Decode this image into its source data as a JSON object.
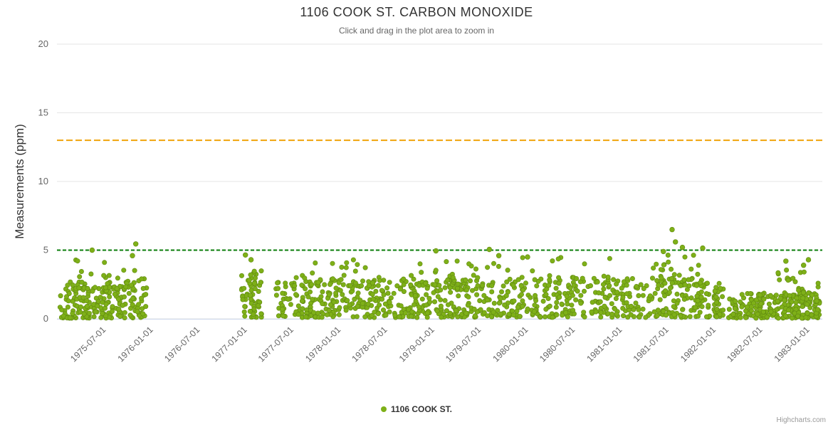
{
  "title": "1106 COOK ST. CARBON MONOXIDE",
  "subtitle": "Click and drag in the plot area to zoom in",
  "credits": "Highcharts.com",
  "legend": {
    "series_label": "1106 COOK ST."
  },
  "colors": {
    "point": "#7eb018",
    "point_stroke": "#618a10",
    "orange_plotline": "#f0a30a",
    "green_plotline": "#0a7d0a",
    "grid": "#e6e6e6",
    "axis_line": "#ccd6eb",
    "axis_text": "#666666",
    "title_text": "#333333"
  },
  "chart_data": {
    "type": "scatter",
    "title": "1106 COOK ST. CARBON MONOXIDE",
    "subtitle": "Click and drag in the plot area to zoom in",
    "series_name": "1106 COOK ST.",
    "xlabel": "",
    "ylabel": "Measurements (ppm)",
    "ylim": [
      0,
      20
    ],
    "yticks": [
      0,
      5,
      10,
      15,
      20
    ],
    "x_range": [
      "1975-01-01",
      "1983-03-01"
    ],
    "xtick_labels": [
      "1975-07-01",
      "1976-01-01",
      "1976-07-01",
      "1977-01-01",
      "1977-07-01",
      "1978-01-01",
      "1978-07-01",
      "1979-01-01",
      "1979-07-01",
      "1980-01-01",
      "1980-07-01",
      "1981-01-01",
      "1981-07-01",
      "1982-01-01",
      "1982-07-01",
      "1983-01-01"
    ],
    "grid": "horizontal-only",
    "legend_position": "bottom-center",
    "plot_lines": [
      {
        "value": 13,
        "color_key": "orange_plotline",
        "dash": [
          9,
          4
        ],
        "width": 2
      },
      {
        "value": 5,
        "color_key": "green_plotline",
        "dash": [
          5,
          3
        ],
        "width": 2
      }
    ],
    "point_clusters": [
      {
        "start": "1975-01-12",
        "end": "1975-12-18",
        "count": 190,
        "y_min": 0.05,
        "y_max": 2.7,
        "bias": 1.6
      },
      {
        "start": "1975-02-01",
        "end": "1975-12-10",
        "count": 34,
        "y_min": 2.2,
        "y_max": 4.3,
        "bias": 2.0
      },
      {
        "start": "1976-12-20",
        "end": "1977-03-08",
        "count": 62,
        "y_min": 0.1,
        "y_max": 3.6,
        "bias": 1.5
      },
      {
        "start": "1977-05-02",
        "end": "1978-12-28",
        "count": 270,
        "y_min": 0.1,
        "y_max": 2.8,
        "bias": 1.5
      },
      {
        "start": "1977-06-01",
        "end": "1978-12-20",
        "count": 52,
        "y_min": 2.4,
        "y_max": 4.4,
        "bias": 2.1
      },
      {
        "start": "1979-01-02",
        "end": "1980-12-28",
        "count": 310,
        "y_min": 0.1,
        "y_max": 2.9,
        "bias": 1.4
      },
      {
        "start": "1979-01-10",
        "end": "1980-12-20",
        "count": 62,
        "y_min": 2.4,
        "y_max": 4.5,
        "bias": 2.1
      },
      {
        "start": "1981-01-03",
        "end": "1981-12-18",
        "count": 150,
        "y_min": 0.1,
        "y_max": 3.0,
        "bias": 1.4
      },
      {
        "start": "1981-05-01",
        "end": "1981-12-10",
        "count": 36,
        "y_min": 2.4,
        "y_max": 4.7,
        "bias": 1.9
      },
      {
        "start": "1982-01-02",
        "end": "1982-02-08",
        "count": 36,
        "y_min": 0.15,
        "y_max": 2.6,
        "bias": 1.5
      },
      {
        "start": "1982-03-01",
        "end": "1983-02-18",
        "count": 230,
        "y_min": 0.05,
        "y_max": 1.9,
        "bias": 1.5
      },
      {
        "start": "1982-09-01",
        "end": "1983-02-15",
        "count": 44,
        "y_min": 1.2,
        "y_max": 3.7,
        "bias": 1.8
      }
    ],
    "outlier_points": [
      [
        "1975-05-18",
        5.0
      ],
      [
        "1975-11-04",
        5.45
      ],
      [
        "1975-10-22",
        4.6
      ],
      [
        "1977-01-04",
        4.65
      ],
      [
        "1977-01-26",
        4.3
      ],
      [
        "1979-01-16",
        4.95
      ],
      [
        "1979-08-12",
        5.05
      ],
      [
        "1979-09-18",
        4.6
      ],
      [
        "1980-01-08",
        4.5
      ],
      [
        "1981-06-20",
        4.9
      ],
      [
        "1981-07-24",
        6.5
      ],
      [
        "1981-08-06",
        5.6
      ],
      [
        "1981-09-02",
        5.2
      ],
      [
        "1981-11-20",
        5.15
      ],
      [
        "1982-10-10",
        4.2
      ],
      [
        "1983-01-06",
        4.3
      ],
      [
        "1982-12-18",
        3.9
      ]
    ]
  }
}
